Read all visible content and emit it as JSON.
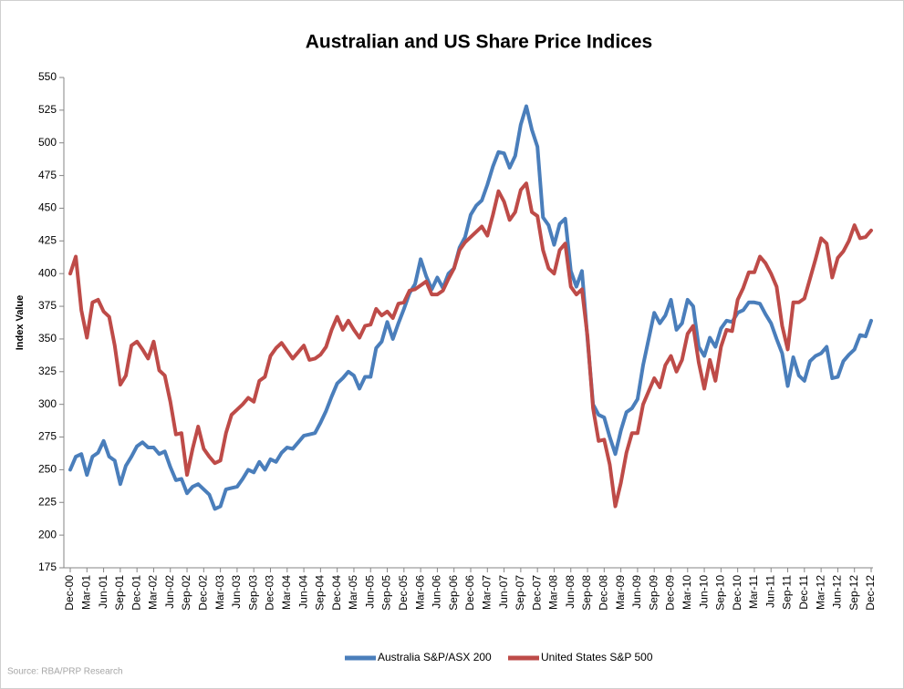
{
  "chart_data": {
    "type": "line",
    "title": "Australian and US Share Price Indices",
    "y_label": "Index Value",
    "source": "Source: RBA/PRP Research",
    "categories": [
      "Dec-00",
      null,
      null,
      "Mar-01",
      null,
      null,
      "Jun-01",
      null,
      null,
      "Sep-01",
      null,
      null,
      "Dec-01",
      null,
      null,
      "Mar-02",
      null,
      null,
      "Jun-02",
      null,
      null,
      "Sep-02",
      null,
      null,
      "Dec-02",
      null,
      null,
      "Mar-03",
      null,
      null,
      "Jun-03",
      null,
      null,
      "Sep-03",
      null,
      null,
      "Dec-03",
      null,
      null,
      "Mar-04",
      null,
      null,
      "Jun-04",
      null,
      null,
      "Sep-04",
      null,
      null,
      "Dec-04",
      null,
      null,
      "Mar-05",
      null,
      null,
      "Jun-05",
      null,
      null,
      "Sep-05",
      null,
      null,
      "Dec-05",
      null,
      null,
      "Mar-06",
      null,
      null,
      "Jun-06",
      null,
      null,
      "Sep-06",
      null,
      null,
      "Dec-06",
      null,
      null,
      "Mar-07",
      null,
      null,
      "Jun-07",
      null,
      null,
      "Sep-07",
      null,
      null,
      "Dec-07",
      null,
      null,
      "Mar-08",
      null,
      null,
      "Jun-08",
      null,
      null,
      "Sep-08",
      null,
      null,
      "Dec-08",
      null,
      null,
      "Mar-09",
      null,
      null,
      "Jun-09",
      null,
      null,
      "Sep-09",
      null,
      null,
      "Dec-09",
      null,
      null,
      "Mar-10",
      null,
      null,
      "Jun-10",
      null,
      null,
      "Sep-10",
      null,
      null,
      "Dec-10",
      null,
      null,
      "Mar-11",
      null,
      null,
      "Jun-11",
      null,
      null,
      "Sep-11",
      null,
      null,
      "Dec-11",
      null,
      null,
      "Mar-12",
      null,
      null,
      "Jun-12",
      null,
      null,
      "Sep-12",
      null,
      null,
      "Dec-12"
    ],
    "series": [
      {
        "name": "Australia S&P/ASX 200",
        "color": "#4a7ebb",
        "values": [
          250,
          260,
          262,
          246,
          260,
          263,
          272,
          260,
          257,
          239,
          253,
          260,
          268,
          271,
          267,
          267,
          262,
          264,
          252,
          242,
          243,
          232,
          237,
          239,
          235,
          231,
          220,
          222,
          235,
          236,
          237,
          243,
          250,
          248,
          256,
          250,
          258,
          256,
          263,
          267,
          266,
          271,
          276,
          277,
          278,
          286,
          295,
          306,
          316,
          320,
          325,
          322,
          312,
          321,
          321,
          343,
          348,
          363,
          350,
          362,
          373,
          385,
          392,
          411,
          398,
          388,
          397,
          389,
          400,
          404,
          420,
          428,
          445,
          452,
          456,
          468,
          482,
          493,
          492,
          481,
          490,
          514,
          528,
          510,
          497,
          443,
          437,
          422,
          438,
          442,
          402,
          390,
          402,
          350,
          300,
          292,
          290,
          275,
          262,
          280,
          294,
          297,
          304,
          330,
          350,
          370,
          362,
          368,
          380,
          357,
          362,
          380,
          375,
          344,
          337,
          351,
          344,
          358,
          364,
          363,
          370,
          372,
          378,
          378,
          377,
          369,
          362,
          350,
          339,
          314,
          336,
          322,
          318,
          333,
          337,
          339,
          344,
          320,
          321,
          333,
          338,
          342,
          353,
          352,
          364
        ]
      },
      {
        "name": "United States S&P 500",
        "color": "#be4b48",
        "values": [
          400,
          413,
          372,
          351,
          378,
          380,
          371,
          367,
          345,
          315,
          322,
          345,
          348,
          342,
          335,
          348,
          326,
          322,
          302,
          277,
          278,
          246,
          266,
          283,
          266,
          260,
          255,
          257,
          278,
          292,
          296,
          300,
          305,
          302,
          318,
          321,
          337,
          343,
          347,
          341,
          335,
          340,
          345,
          334,
          335,
          338,
          344,
          357,
          367,
          357,
          364,
          357,
          351,
          360,
          361,
          373,
          368,
          371,
          366,
          377,
          378,
          387,
          388,
          391,
          394,
          384,
          384,
          387,
          396,
          404,
          418,
          424,
          428,
          432,
          436,
          429,
          445,
          463,
          455,
          441,
          447,
          464,
          469,
          447,
          444,
          418,
          404,
          400,
          418,
          423,
          390,
          384,
          388,
          352,
          297,
          272,
          273,
          254,
          222,
          240,
          263,
          278,
          278,
          300,
          310,
          320,
          313,
          330,
          337,
          325,
          334,
          354,
          360,
          332,
          312,
          334,
          318,
          344,
          357,
          356,
          380,
          389,
          401,
          401,
          413,
          408,
          400,
          390,
          360,
          342,
          378,
          378,
          381,
          396,
          411,
          427,
          423,
          397,
          412,
          417,
          425,
          437,
          427,
          428,
          433
        ]
      }
    ],
    "ylim": [
      175,
      550
    ],
    "yticks": [
      175,
      200,
      225,
      250,
      275,
      300,
      325,
      350,
      375,
      400,
      425,
      450,
      475,
      500,
      525,
      550
    ],
    "grid": false,
    "legend": "bottom"
  }
}
